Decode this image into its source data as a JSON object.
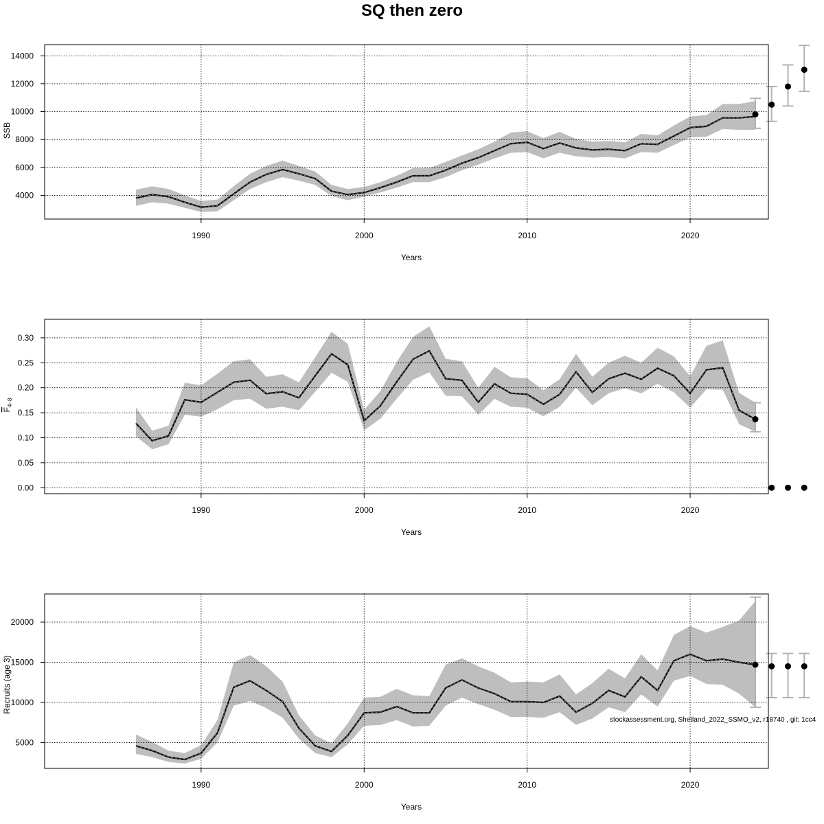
{
  "title": "SQ then zero",
  "footnote": "stockassessment.org, Shetland_2022_SSMO_v2, r18740 , git: 1cc4",
  "colors": {
    "band": "#bebebe",
    "line": "#000000",
    "forecast": "#b3b3b3",
    "grid": "#000000"
  },
  "chart_data": [
    {
      "type": "line",
      "name": "ssb",
      "ylabel": "SSB",
      "ylabel_sub": "",
      "xlabel": "Years",
      "xlim": [
        1980.4,
        2024.8
      ],
      "ylim": [
        2300,
        14800
      ],
      "xticks": [
        1990,
        2000,
        2010,
        2020
      ],
      "yticks": [
        4000,
        6000,
        8000,
        10000,
        12000,
        14000
      ],
      "grid": true,
      "x": [
        1986,
        1987,
        1988,
        1989,
        1990,
        1991,
        1992,
        1993,
        1994,
        1995,
        1996,
        1997,
        1998,
        1999,
        2000,
        2001,
        2002,
        2003,
        2004,
        2005,
        2006,
        2007,
        2008,
        2009,
        2010,
        2011,
        2012,
        2013,
        2014,
        2015,
        2016,
        2017,
        2018,
        2019,
        2020,
        2021,
        2022,
        2023,
        2024
      ],
      "estimate": [
        3800,
        4050,
        3900,
        3500,
        3150,
        3250,
        4100,
        4950,
        5500,
        5850,
        5550,
        5200,
        4300,
        4050,
        4200,
        4550,
        4950,
        5400,
        5400,
        5800,
        6300,
        6700,
        7200,
        7700,
        7800,
        7350,
        7750,
        7400,
        7250,
        7300,
        7200,
        7700,
        7650,
        8250,
        8850,
        8950,
        9550,
        9550,
        9650
      ],
      "lower": [
        3250,
        3500,
        3400,
        3100,
        2800,
        2850,
        3650,
        4450,
        4950,
        5300,
        5050,
        4750,
        3950,
        3650,
        3900,
        4200,
        4550,
        4950,
        4950,
        5300,
        5800,
        6200,
        6650,
        7050,
        7100,
        6650,
        7050,
        6800,
        6700,
        6750,
        6650,
        7100,
        7050,
        7600,
        8150,
        8200,
        8750,
        8700,
        8700
      ],
      "upper": [
        4400,
        4650,
        4450,
        4000,
        3600,
        3700,
        4650,
        5550,
        6100,
        6500,
        6100,
        5700,
        4750,
        4450,
        4600,
        4950,
        5400,
        5950,
        5950,
        6400,
        6850,
        7300,
        7850,
        8500,
        8600,
        8100,
        8550,
        8050,
        7850,
        7900,
        7800,
        8400,
        8300,
        9000,
        9650,
        9750,
        10550,
        10550,
        10750
      ],
      "forecast": {
        "x": [
          2024,
          2025,
          2026,
          2027
        ],
        "estimate": [
          9800,
          10500,
          11800,
          13000
        ],
        "lower": [
          8800,
          9300,
          10400,
          11450
        ],
        "upper": [
          10950,
          11800,
          13350,
          14750
        ]
      }
    },
    {
      "type": "line",
      "name": "fbar",
      "ylabel": "F",
      "ylabel_sub": "4–8",
      "xlabel": "Years",
      "xlim": [
        1980.4,
        2024.8
      ],
      "ylim": [
        -0.012,
        0.337
      ],
      "xticks": [
        1990,
        2000,
        2010,
        2020
      ],
      "yticks": [
        0.0,
        0.05,
        0.1,
        0.15,
        0.2,
        0.25,
        0.3
      ],
      "ytick_labels": [
        "0.00",
        "0.05",
        "0.10",
        "0.15",
        "0.20",
        "0.25",
        "0.30"
      ],
      "grid": true,
      "x": [
        1986,
        1987,
        1988,
        1989,
        1990,
        1991,
        1992,
        1993,
        1994,
        1995,
        1996,
        1997,
        1998,
        1999,
        2000,
        2001,
        2002,
        2003,
        2004,
        2005,
        2006,
        2007,
        2008,
        2009,
        2010,
        2011,
        2012,
        2013,
        2014,
        2015,
        2016,
        2017,
        2018,
        2019,
        2020,
        2021,
        2022,
        2023,
        2024
      ],
      "estimate": [
        0.129,
        0.094,
        0.104,
        0.176,
        0.171,
        0.191,
        0.211,
        0.215,
        0.188,
        0.192,
        0.18,
        0.224,
        0.268,
        0.246,
        0.134,
        0.164,
        0.212,
        0.257,
        0.274,
        0.218,
        0.215,
        0.171,
        0.208,
        0.189,
        0.187,
        0.167,
        0.187,
        0.232,
        0.191,
        0.218,
        0.229,
        0.217,
        0.239,
        0.224,
        0.189,
        0.236,
        0.24,
        0.155,
        0.137
      ],
      "lower": [
        0.103,
        0.077,
        0.087,
        0.146,
        0.142,
        0.157,
        0.175,
        0.178,
        0.158,
        0.162,
        0.155,
        0.192,
        0.23,
        0.212,
        0.115,
        0.138,
        0.178,
        0.216,
        0.231,
        0.184,
        0.183,
        0.146,
        0.178,
        0.162,
        0.16,
        0.143,
        0.162,
        0.2,
        0.165,
        0.189,
        0.199,
        0.189,
        0.208,
        0.191,
        0.16,
        0.197,
        0.196,
        0.127,
        0.112
      ],
      "upper": [
        0.161,
        0.114,
        0.124,
        0.21,
        0.205,
        0.228,
        0.253,
        0.257,
        0.222,
        0.227,
        0.211,
        0.261,
        0.312,
        0.288,
        0.156,
        0.193,
        0.252,
        0.302,
        0.323,
        0.258,
        0.253,
        0.2,
        0.242,
        0.221,
        0.219,
        0.195,
        0.217,
        0.268,
        0.222,
        0.25,
        0.264,
        0.25,
        0.28,
        0.263,
        0.223,
        0.284,
        0.295,
        0.19,
        0.17
      ],
      "forecast": {
        "x": [
          2024,
          2025,
          2026,
          2027
        ],
        "estimate": [
          0.137,
          0.0,
          0.0,
          0.0
        ],
        "lower": [
          0.112,
          0.0,
          0.0,
          0.0
        ],
        "upper": [
          0.17,
          0.0,
          0.0,
          0.0
        ]
      }
    },
    {
      "type": "line",
      "name": "recruits",
      "ylabel": "Recruits (age 3)",
      "ylabel_sub": "",
      "xlabel": "Years",
      "xlim": [
        1980.4,
        2024.8
      ],
      "ylim": [
        1800,
        23500
      ],
      "xticks": [
        1990,
        2000,
        2010,
        2020
      ],
      "yticks": [
        5000,
        10000,
        15000,
        20000
      ],
      "grid": true,
      "x": [
        1986,
        1987,
        1988,
        1989,
        1990,
        1991,
        1992,
        1993,
        1994,
        1995,
        1996,
        1997,
        1998,
        1999,
        2000,
        2001,
        2002,
        2003,
        2004,
        2005,
        2006,
        2007,
        2008,
        2009,
        2010,
        2011,
        2012,
        2013,
        2014,
        2015,
        2016,
        2017,
        2018,
        2019,
        2020,
        2021,
        2022,
        2023,
        2024
      ],
      "estimate": [
        4600,
        4000,
        3200,
        2900,
        3700,
        6200,
        11900,
        12700,
        11500,
        10100,
        6800,
        4600,
        3900,
        5900,
        8700,
        8800,
        9500,
        8700,
        8700,
        11800,
        12800,
        11800,
        11100,
        10100,
        10100,
        10000,
        10800,
        8800,
        9900,
        11500,
        10700,
        13200,
        11500,
        15200,
        16000,
        15200,
        15400,
        15000,
        14700
      ],
      "lower": [
        3600,
        3200,
        2600,
        2400,
        3000,
        5000,
        9600,
        10200,
        9300,
        8100,
        5500,
        3700,
        3200,
        4800,
        7100,
        7200,
        7800,
        7000,
        7100,
        9600,
        10600,
        9800,
        9100,
        8200,
        8200,
        8100,
        8800,
        7200,
        8000,
        9400,
        8800,
        11000,
        9500,
        12700,
        13300,
        12300,
        12200,
        11100,
        9400
      ],
      "upper": [
        6000,
        5100,
        4000,
        3700,
        4700,
        7800,
        15000,
        15900,
        14500,
        12600,
        8400,
        5900,
        4900,
        7400,
        10600,
        10700,
        11700,
        10900,
        10800,
        14700,
        15500,
        14500,
        13700,
        12500,
        12600,
        12500,
        13500,
        11000,
        12400,
        14200,
        13000,
        16000,
        14000,
        18400,
        19500,
        18700,
        19400,
        20200,
        22600
      ],
      "forecast": {
        "x": [
          2024,
          2025,
          2026,
          2027
        ],
        "estimate": [
          14700,
          14500,
          14500,
          14500
        ],
        "lower": [
          9400,
          10600,
          10600,
          10600
        ],
        "upper": [
          23100,
          16100,
          16100,
          16100
        ]
      }
    }
  ]
}
